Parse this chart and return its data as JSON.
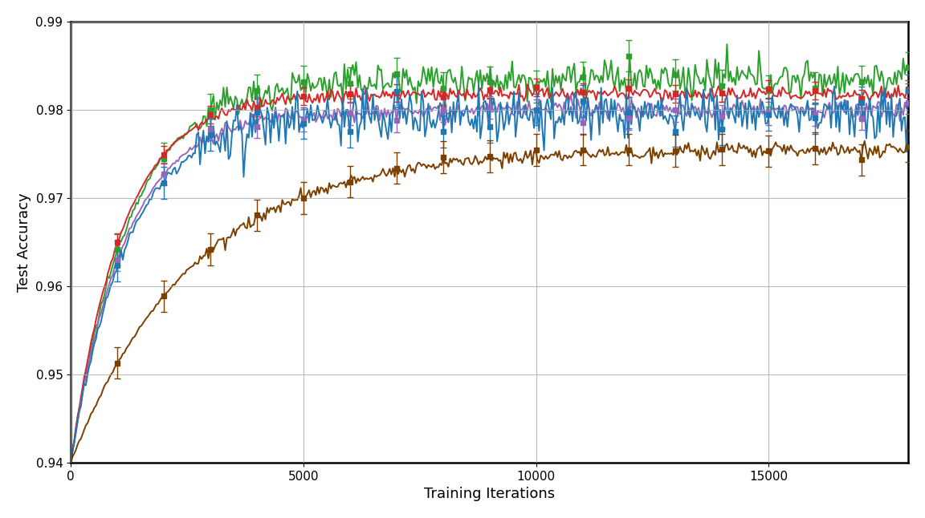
{
  "xlabel": "Training Iterations",
  "ylabel": "Test Accuracy",
  "xlim": [
    0,
    18000
  ],
  "ylim": [
    0.94,
    0.99
  ],
  "yticks": [
    0.94,
    0.95,
    0.96,
    0.97,
    0.98,
    0.99
  ],
  "xticks": [
    0,
    5000,
    10000,
    15000
  ],
  "lines": [
    {
      "color": "#2ca02c",
      "plateau": 0.9835,
      "start": 0.94,
      "k": 0.0008,
      "noise": 0.001,
      "errorbar_val": 0.0018
    },
    {
      "color": "#d62728",
      "plateau": 0.9818,
      "start": 0.94,
      "k": 0.0009,
      "noise": 0.0004,
      "errorbar_val": 0.001
    },
    {
      "color": "#9467bd",
      "plateau": 0.98,
      "start": 0.94,
      "k": 0.00085,
      "noise": 0.0005,
      "errorbar_val": 0.0013
    },
    {
      "color": "#1f77b4",
      "plateau": 0.9795,
      "start": 0.94,
      "k": 0.00082,
      "noise": 0.0014,
      "errorbar_val": 0.0018
    },
    {
      "color": "#7B3F00",
      "plateau": 0.9755,
      "start": 0.94,
      "k": 0.00038,
      "noise": 0.0004,
      "errorbar_val": 0.0018
    }
  ],
  "n_points": 500,
  "max_iter": 18000,
  "errorbar_positions": [
    1000,
    2000,
    3000,
    4000,
    5000,
    6000,
    7000,
    8000,
    9000,
    10000,
    11000,
    12000,
    13000,
    14000,
    15000,
    16000,
    17000,
    18000
  ],
  "linewidth": 1.4,
  "marker": "s",
  "markersize": 4,
  "capsize": 3,
  "xlabel_fontsize": 13,
  "ylabel_fontsize": 13,
  "tick_fontsize": 11
}
